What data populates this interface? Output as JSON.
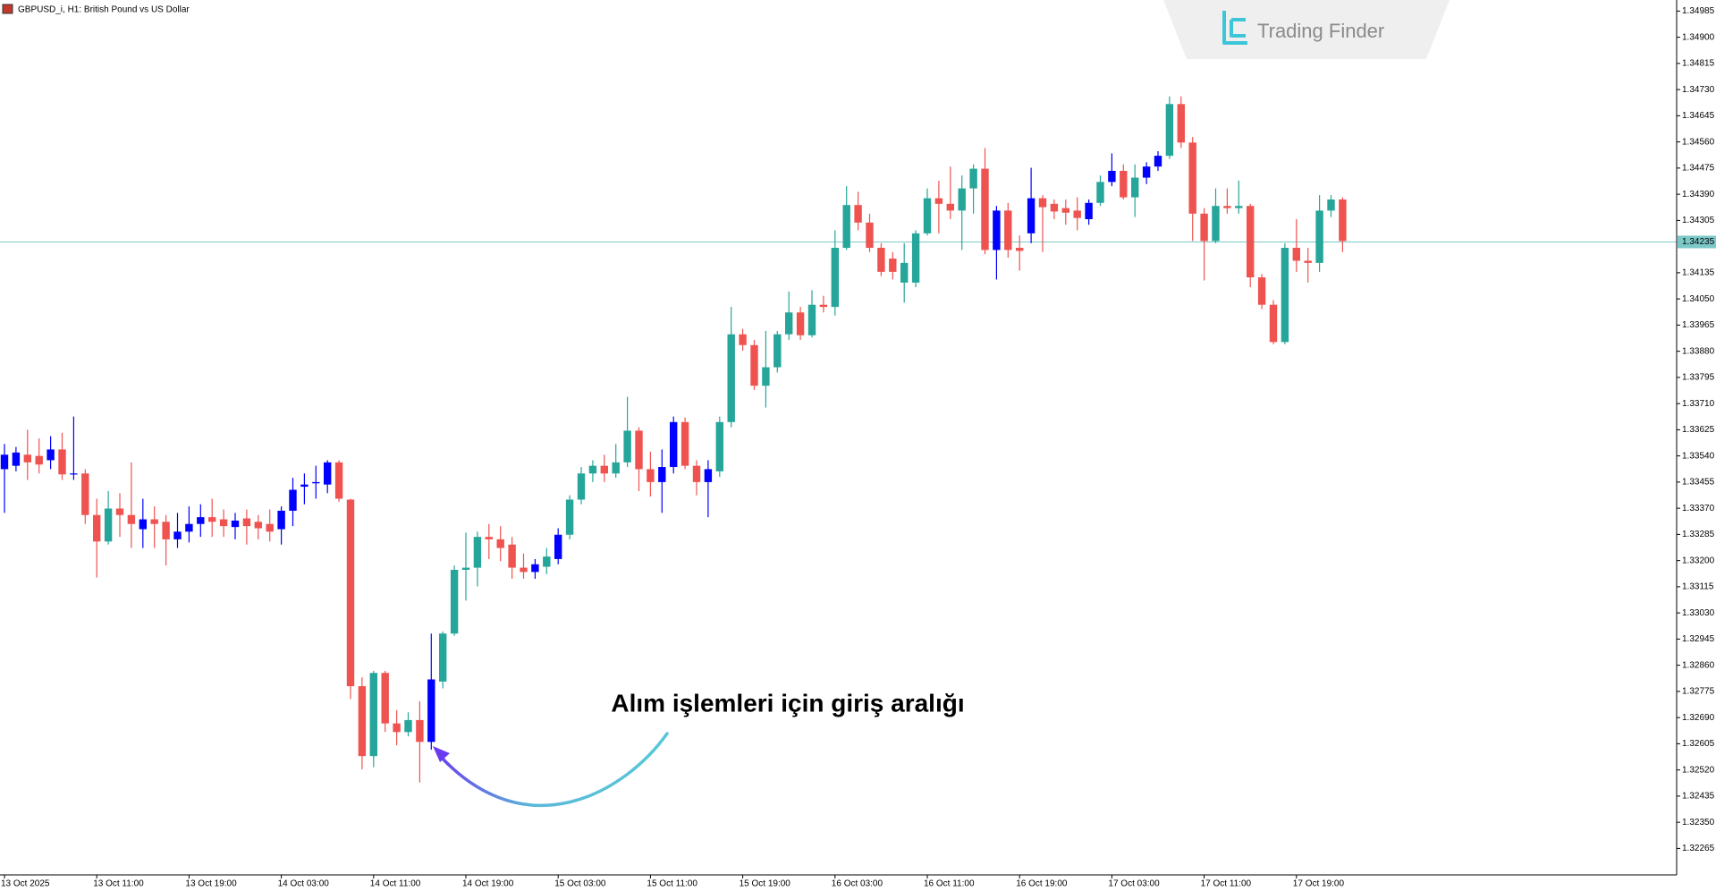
{
  "chart_data": {
    "type": "candlestick",
    "title": "GBPUSD_i, H1:  British Pound vs US Dollar",
    "watermark": "Trading Finder",
    "annotation": "Alım işlemleri için giriş aralığı",
    "categories": [
      "13 Oct 2025",
      null,
      null,
      null,
      null,
      null,
      null,
      null,
      "13 Oct 11:00",
      null,
      null,
      null,
      null,
      null,
      null,
      null,
      "13 Oct 19:00",
      null,
      null,
      null,
      null,
      null,
      null,
      null,
      "14 Oct 03:00",
      null,
      null,
      null,
      null,
      null,
      null,
      null,
      "14 Oct 11:00",
      null,
      null,
      null,
      null,
      null,
      null,
      null,
      "14 Oct 19:00",
      null,
      null,
      null,
      null,
      null,
      null,
      null,
      "15 Oct 03:00",
      null,
      null,
      null,
      null,
      null,
      null,
      null,
      "15 Oct 11:00",
      null,
      null,
      null,
      null,
      null,
      null,
      null,
      "15 Oct 19:00",
      null,
      null,
      null,
      null,
      null,
      null,
      null,
      "16 Oct 03:00",
      null,
      null,
      null,
      null,
      null,
      null,
      null,
      "16 Oct 11:00",
      null,
      null,
      null,
      null,
      null,
      null,
      null,
      "16 Oct 19:00",
      null,
      null,
      null,
      null,
      null,
      null,
      null,
      "17 Oct 03:00",
      null,
      null,
      null,
      null,
      null,
      null,
      null,
      "17 Oct 11:00",
      null,
      null,
      null,
      null,
      null,
      null,
      null,
      "17 Oct 19:00",
      null,
      null,
      null,
      null
    ],
    "open": [
      1.33497,
      1.33508,
      1.33544,
      1.3354,
      1.33526,
      1.33561,
      1.3348,
      1.33483,
      1.33348,
      1.33262,
      1.33369,
      1.33348,
      1.33302,
      1.33334,
      1.33326,
      1.33269,
      1.33294,
      1.33319,
      1.33341,
      1.33334,
      1.33309,
      1.33337,
      1.33326,
      1.33319,
      1.33302,
      1.33362,
      1.3344,
      1.33451,
      1.33447,
      1.33519,
      1.33398,
      1.32792,
      1.32565,
      1.32835,
      1.32671,
      1.32643,
      1.32682,
      1.32611,
      1.32807,
      1.32963,
      1.3317,
      1.33177,
      1.33277,
      1.33269,
      1.33252,
      1.33177,
      1.33163,
      1.3318,
      1.33205,
      1.33284,
      1.33398,
      1.33483,
      1.33508,
      1.33483,
      1.33519,
      1.33622,
      1.33497,
      1.33455,
      1.33504,
      1.3365,
      1.33508,
      1.33455,
      1.3349,
      1.3365,
      1.33935,
      1.339,
      1.33768,
      1.33828,
      1.33935,
      1.34006,
      1.33932,
      1.34031,
      1.34024,
      1.34216,
      1.34355,
      1.34298,
      1.34216,
      1.34181,
      1.34103,
      1.34103,
      1.34263,
      1.34377,
      1.34359,
      1.34337,
      1.34409,
      1.34473,
      1.34209,
      1.34337,
      1.34216,
      1.34263,
      1.34377,
      1.34359,
      1.34345,
      1.34337,
      1.34309,
      1.34362,
      1.3443,
      1.34466,
      1.3438,
      1.34444,
      1.3448,
      1.34515,
      1.34683,
      1.34558,
      1.34327,
      1.34238,
      1.34352,
      1.34345,
      1.34352,
      1.3412,
      1.34031,
      1.3391,
      1.34216,
      1.34174,
      1.34167,
      1.34337,
      1.34373
    ],
    "high": [
      1.33579,
      1.33569,
      1.33625,
      1.33597,
      1.33604,
      1.33615,
      1.33668,
      1.33497,
      1.33401,
      1.33426,
      1.33419,
      1.33519,
      1.33401,
      1.33376,
      1.33348,
      1.33355,
      1.33376,
      1.33383,
      1.33401,
      1.33366,
      1.33355,
      1.33366,
      1.33348,
      1.33366,
      1.33376,
      1.33469,
      1.33483,
      1.33508,
      1.33526,
      1.33526,
      1.33401,
      1.32821,
      1.32842,
      1.32842,
      1.32714,
      1.32707,
      1.32743,
      1.32963,
      1.3297,
      1.33184,
      1.33291,
      1.33294,
      1.33319,
      1.33312,
      1.33277,
      1.33223,
      1.33205,
      1.33241,
      1.33305,
      1.33412,
      1.33504,
      1.33526,
      1.33544,
      1.33579,
      1.33732,
      1.33633,
      1.33554,
      1.33561,
      1.33668,
      1.33665,
      1.33526,
      1.33526,
      1.33668,
      1.34024,
      1.33953,
      1.33917,
      1.33946,
      1.33946,
      1.34074,
      1.34024,
      1.34078,
      1.3406,
      1.34273,
      1.34416,
      1.34398,
      1.34327,
      1.34231,
      1.34202,
      1.34231,
      1.34273,
      1.34409,
      1.34434,
      1.3448,
      1.34451,
      1.34487,
      1.3454,
      1.34352,
      1.34362,
      1.34256,
      1.34476,
      1.34387,
      1.34373,
      1.34373,
      1.3438,
      1.34373,
      1.34451,
      1.34523,
      1.34487,
      1.34487,
      1.34494,
      1.3453,
      1.34708,
      1.34708,
      1.34576,
      1.34345,
      1.34409,
      1.34409,
      1.34434,
      1.34359,
      1.34131,
      1.34046,
      1.34231,
      1.34309,
      1.34216,
      1.34387,
      1.34387,
      1.3438
    ],
    "low": [
      1.33355,
      1.3349,
      1.33462,
      1.33483,
      1.33497,
      1.33462,
      1.33462,
      1.33319,
      1.33145,
      1.33252,
      1.33277,
      1.33241,
      1.33241,
      1.33241,
      1.33184,
      1.33241,
      1.33259,
      1.33277,
      1.33277,
      1.33277,
      1.33269,
      1.33252,
      1.33269,
      1.33262,
      1.33252,
      1.33312,
      1.33383,
      1.33401,
      1.33419,
      1.33391,
      1.3275,
      1.32522,
      1.32529,
      1.32643,
      1.326,
      1.32629,
      1.32479,
      1.32586,
      1.32785,
      1.32956,
      1.3307,
      1.33116,
      1.33205,
      1.33198,
      1.33141,
      1.33141,
      1.33141,
      1.33156,
      1.33188,
      1.33269,
      1.33383,
      1.33455,
      1.33455,
      1.33469,
      1.33504,
      1.33426,
      1.33408,
      1.33355,
      1.33483,
      1.33497,
      1.33412,
      1.33341,
      1.33472,
      1.33633,
      1.33882,
      1.33754,
      1.33697,
      1.33811,
      1.33917,
      1.33917,
      1.33925,
      1.34006,
      1.33996,
      1.34209,
      1.34273,
      1.34202,
      1.34124,
      1.34113,
      1.34038,
      1.34088,
      1.34256,
      1.34263,
      1.34309,
      1.34209,
      1.34327,
      1.34195,
      1.34113,
      1.34184,
      1.34142,
      1.34231,
      1.34202,
      1.34309,
      1.34291,
      1.34273,
      1.34291,
      1.34352,
      1.34416,
      1.34373,
      1.34316,
      1.34423,
      1.34466,
      1.34505,
      1.3454,
      1.34238,
      1.3411,
      1.34231,
      1.34327,
      1.34327,
      1.34088,
      1.34017,
      1.33903,
      1.33903,
      1.34138,
      1.34103,
      1.34138,
      1.34316,
      1.34202
    ],
    "close": [
      1.33544,
      1.33551,
      1.33519,
      1.33512,
      1.33561,
      1.3348,
      1.33483,
      1.33348,
      1.33262,
      1.33369,
      1.33348,
      1.33319,
      1.33334,
      1.33319,
      1.33269,
      1.33294,
      1.33319,
      1.33341,
      1.33326,
      1.33312,
      1.3333,
      1.33312,
      1.33305,
      1.33294,
      1.33362,
      1.3343,
      1.33447,
      1.33455,
      1.33519,
      1.33401,
      1.32792,
      1.32565,
      1.32835,
      1.32671,
      1.32643,
      1.32682,
      1.32611,
      1.32814,
      1.32963,
      1.3317,
      1.33177,
      1.33277,
      1.33269,
      1.33241,
      1.33177,
      1.33163,
      1.33188,
      1.33213,
      1.33284,
      1.33398,
      1.33483,
      1.33508,
      1.33483,
      1.33519,
      1.33622,
      1.33497,
      1.33455,
      1.33504,
      1.3365,
      1.33508,
      1.33455,
      1.33497,
      1.3365,
      1.33935,
      1.339,
      1.33768,
      1.33828,
      1.33935,
      1.34006,
      1.33932,
      1.34031,
      1.34024,
      1.34216,
      1.34355,
      1.34298,
      1.34216,
      1.34138,
      1.34138,
      1.34167,
      1.34263,
      1.34377,
      1.34359,
      1.34337,
      1.34409,
      1.34473,
      1.34209,
      1.34337,
      1.34209,
      1.34206,
      1.34377,
      1.34348,
      1.34334,
      1.3433,
      1.34313,
      1.34362,
      1.3443,
      1.34466,
      1.3438,
      1.34444,
      1.3448,
      1.34515,
      1.34683,
      1.34558,
      1.34327,
      1.34238,
      1.34352,
      1.34345,
      1.34352,
      1.3412,
      1.34031,
      1.3391,
      1.34216,
      1.34174,
      1.34167,
      1.34337,
      1.34373,
      1.34238
    ],
    "colors": [
      "#0000ff",
      "#0000ff",
      "#ef5350",
      "#ef5350",
      "#0000ff",
      "#ef5350",
      "#0000ff",
      "#ef5350",
      "#ef5350",
      "#26a69a",
      "#ef5350",
      "#ef5350",
      "#0000ff",
      "#ef5350",
      "#ef5350",
      "#0000ff",
      "#0000ff",
      "#0000ff",
      "#ef5350",
      "#ef5350",
      "#0000ff",
      "#ef5350",
      "#ef5350",
      "#ef5350",
      "#0000ff",
      "#0000ff",
      "#0000ff",
      "#0000ff",
      "#0000ff",
      "#ef5350",
      "#ef5350",
      "#ef5350",
      "#26a69a",
      "#ef5350",
      "#ef5350",
      "#26a69a",
      "#ef5350",
      "#0000ff",
      "#26a69a",
      "#26a69a",
      "#26a69a",
      "#26a69a",
      "#ef5350",
      "#ef5350",
      "#ef5350",
      "#ef5350",
      "#0000ff",
      "#26a69a",
      "#0000ff",
      "#26a69a",
      "#26a69a",
      "#26a69a",
      "#ef5350",
      "#26a69a",
      "#26a69a",
      "#ef5350",
      "#ef5350",
      "#0000ff",
      "#0000ff",
      "#ef5350",
      "#ef5350",
      "#0000ff",
      "#26a69a",
      "#26a69a",
      "#ef5350",
      "#ef5350",
      "#26a69a",
      "#26a69a",
      "#26a69a",
      "#ef5350",
      "#26a69a",
      "#ef5350",
      "#26a69a",
      "#26a69a",
      "#ef5350",
      "#ef5350",
      "#ef5350",
      "#ef5350",
      "#26a69a",
      "#26a69a",
      "#26a69a",
      "#ef5350",
      "#ef5350",
      "#26a69a",
      "#26a69a",
      "#ef5350",
      "#0000ff",
      "#ef5350",
      "#ef5350",
      "#0000ff",
      "#ef5350",
      "#ef5350",
      "#ef5350",
      "#ef5350",
      "#0000ff",
      "#26a69a",
      "#0000ff",
      "#ef5350",
      "#26a69a",
      "#0000ff",
      "#0000ff",
      "#26a69a",
      "#ef5350",
      "#ef5350",
      "#ef5350",
      "#26a69a",
      "#ef5350",
      "#26a69a",
      "#ef5350",
      "#ef5350",
      "#ef5350",
      "#26a69a",
      "#ef5350",
      "#ef5350",
      "#26a69a",
      "#26a69a",
      "#ef5350"
    ],
    "current_price": 1.34235,
    "current_price_color": "#7cc8c8",
    "ylim": [
      1.32179,
      1.35021
    ],
    "yticks": [
      1.34985,
      {
        "value": 1.349,
        "label": "1.34900"
      },
      1.34815,
      {
        "value": 1.3473,
        "label": "1.34730"
      },
      1.34645,
      {
        "value": 1.3456,
        "label": "1.34560"
      },
      1.34475,
      {
        "value": 1.3439,
        "label": "1.34390"
      },
      1.34305,
      1.34135,
      {
        "value": 1.3405,
        "label": "1.34050"
      },
      1.33965,
      {
        "value": 1.3388,
        "label": "1.33880"
      },
      1.33795,
      {
        "value": 1.3371,
        "label": "1.33710"
      },
      1.33625,
      {
        "value": 1.3354,
        "label": "1.33540"
      },
      1.33455,
      {
        "value": 1.3337,
        "label": "1.33370"
      },
      1.33285,
      {
        "value": 1.332,
        "label": "1.33200"
      },
      1.33115,
      {
        "value": 1.3303,
        "label": "1.33030"
      },
      1.32945,
      {
        "value": 1.3286,
        "label": "1.32860"
      },
      1.32775,
      {
        "value": 1.3269,
        "label": "1.32690"
      },
      1.32605,
      {
        "value": 1.3252,
        "label": "1.32520"
      },
      1.32435,
      {
        "value": 1.3235,
        "label": "1.32350"
      },
      1.32265
    ],
    "grid": false
  }
}
